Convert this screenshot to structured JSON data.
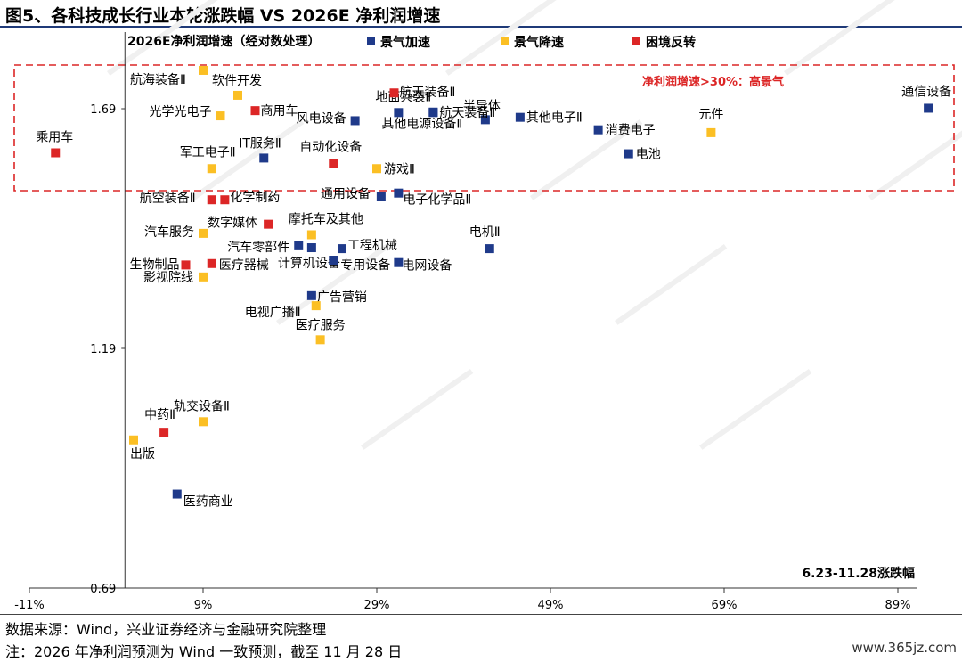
{
  "figure_title": "图5、各科技成长行业本轮涨跌幅  VS 2026E 净利润增速",
  "source_note": "数据来源：Wind，兴业证券经济与金融研究院整理",
  "footnote": "注：2026 年净利润预测为 Wind 一致预测，截至 11 月 28 日",
  "site_watermark": "www.365jz.com",
  "colors": {
    "accel": "#1f3a8a",
    "decel": "#fbbf24",
    "reversal": "#dc2626",
    "highlight": "#dc2626"
  },
  "chart_data": {
    "type": "scatter",
    "ylabel": "2026E净利润增速（经对数处理）",
    "xlabel": "6.23-11.28涨跌幅",
    "x_ticks": [
      "-11%",
      "9%",
      "29%",
      "49%",
      "69%",
      "89%"
    ],
    "y_ticks": [
      "0.69",
      "1.19",
      "1.69"
    ],
    "xlim": [
      -11,
      98
    ],
    "ylim": [
      0.69,
      1.78
    ],
    "highlight_label": "净利润增速>30%：高景气",
    "series": [
      {
        "name": "景气加速",
        "key": "accel",
        "points": [
          {
            "label": "通信设备",
            "x": 92.5,
            "y": 1.691
          },
          {
            "label": "其他电子Ⅱ",
            "x": 45.5,
            "y": 1.672
          },
          {
            "label": "消费电子",
            "x": 54.5,
            "y": 1.646
          },
          {
            "label": "电池",
            "x": 58.0,
            "y": 1.596
          },
          {
            "label": "半导体",
            "x": 41.5,
            "y": 1.667
          },
          {
            "label": "航天装备Ⅱ",
            "x": 35.5,
            "y": 1.683
          },
          {
            "label": "地面兵装Ⅱ",
            "x": 31.5,
            "y": 1.682
          },
          {
            "label": "其他电源设备Ⅱ",
            "x": 35.5,
            "y": 1.682
          },
          {
            "label": "风电设备",
            "x": 26.5,
            "y": 1.665
          },
          {
            "label": "IT服务Ⅱ",
            "x": 16.0,
            "y": 1.587
          },
          {
            "label": "通用设备",
            "x": 29.5,
            "y": 1.506
          },
          {
            "label": "电子化学品Ⅱ",
            "x": 31.5,
            "y": 1.514
          },
          {
            "label": "电机Ⅱ",
            "x": 42.0,
            "y": 1.398
          },
          {
            "label": "工程机械",
            "x": 25.0,
            "y": 1.398
          },
          {
            "label": "汽车零部件",
            "x": 20.0,
            "y": 1.404
          },
          {
            "label": "计算机设备",
            "x": 21.5,
            "y": 1.4
          },
          {
            "label": "专用设备",
            "x": 24.0,
            "y": 1.374
          },
          {
            "label": "电网设备",
            "x": 31.5,
            "y": 1.369
          },
          {
            "label": "广告营销",
            "x": 21.5,
            "y": 1.3
          },
          {
            "label": "医药商业",
            "x": 6.0,
            "y": 0.886
          }
        ]
      },
      {
        "name": "景气降速",
        "key": "decel",
        "points": [
          {
            "label": "航海装备Ⅱ",
            "x": 9.0,
            "y": 1.77
          },
          {
            "label": "软件开发",
            "x": 13.0,
            "y": 1.718
          },
          {
            "label": "光学光电子",
            "x": 11.0,
            "y": 1.675
          },
          {
            "label": "元件",
            "x": 67.5,
            "y": 1.64
          },
          {
            "label": "军工电子Ⅱ",
            "x": 10.0,
            "y": 1.565
          },
          {
            "label": "游戏Ⅱ",
            "x": 29.0,
            "y": 1.565
          },
          {
            "label": "汽车服务",
            "x": 9.0,
            "y": 1.43
          },
          {
            "label": "摩托车及其他",
            "x": 21.5,
            "y": 1.427
          },
          {
            "label": "影视院线",
            "x": 9.0,
            "y": 1.339
          },
          {
            "label": "电视广播Ⅱ",
            "x": 22.0,
            "y": 1.279
          },
          {
            "label": "医疗服务",
            "x": 22.5,
            "y": 1.208
          },
          {
            "label": "轨交设备Ⅱ",
            "x": 9.0,
            "y": 1.037
          },
          {
            "label": "出版",
            "x": 1.0,
            "y": 0.999
          }
        ]
      },
      {
        "name": "困境反转",
        "key": "reversal",
        "points": [
          {
            "label": "乘用车",
            "x": -8.0,
            "y": 1.598
          },
          {
            "label": "商用车",
            "x": 15.0,
            "y": 1.686
          },
          {
            "label": "航天装备Ⅱ",
            "x": 31.0,
            "y": 1.723
          },
          {
            "label": "自动化设备",
            "x": 24.0,
            "y": 1.576
          },
          {
            "label": "航空装备Ⅱ",
            "x": 10.0,
            "y": 1.5
          },
          {
            "label": "化学制药",
            "x": 11.5,
            "y": 1.5
          },
          {
            "label": "数字媒体",
            "x": 16.5,
            "y": 1.449
          },
          {
            "label": "医疗器械",
            "x": 10.0,
            "y": 1.367
          },
          {
            "label": "生物制品",
            "x": 7.0,
            "y": 1.364
          },
          {
            "label": "中药Ⅱ",
            "x": 4.5,
            "y": 1.015
          }
        ]
      }
    ]
  }
}
